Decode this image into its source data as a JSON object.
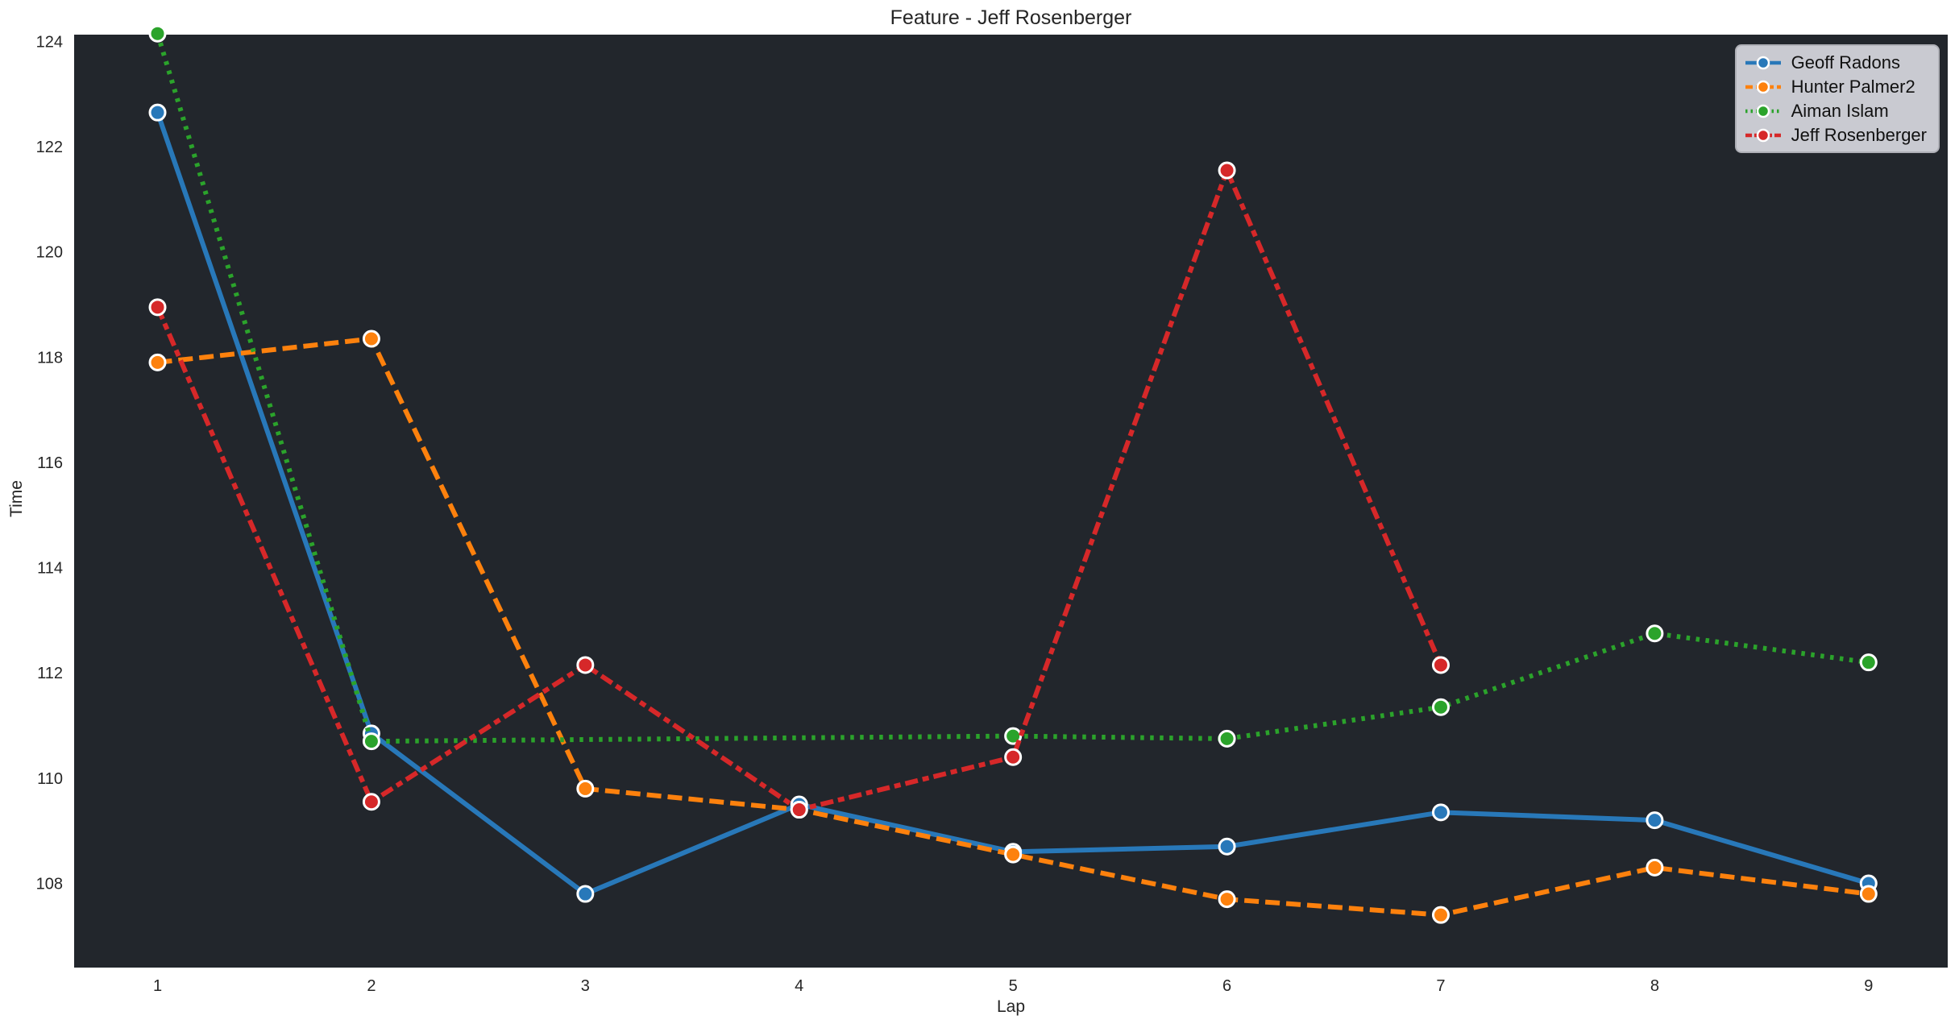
{
  "chart_data": {
    "type": "line",
    "title": "Feature - Jeff Rosenberger",
    "xlabel": "Lap",
    "ylabel": "Time",
    "xlim": [
      0.61,
      9.37
    ],
    "ylim": [
      106.4,
      124.13
    ],
    "xticks": [
      1,
      2,
      3,
      4,
      5,
      6,
      7,
      8,
      9
    ],
    "yticks": [
      108,
      110,
      112,
      114,
      116,
      118,
      120,
      122,
      124
    ],
    "grid": false,
    "legend_position": "upper right",
    "colors": {
      "figure_background": "#ffffff",
      "axes_background": "#22262c",
      "text": "#262626",
      "marker_edge": "#ffffff",
      "legend_background": "#c9cad1"
    },
    "series": [
      {
        "name": "Geoff Radons",
        "color": "#2878b9",
        "dash": "solid",
        "x": [
          1,
          2,
          3,
          4,
          5,
          6,
          7,
          8,
          9
        ],
        "y": [
          122.65,
          110.85,
          107.8,
          109.5,
          108.6,
          108.7,
          109.35,
          109.2,
          108.0
        ]
      },
      {
        "name": "Hunter Palmer2",
        "color": "#fd810d",
        "dash": "dashed",
        "x": [
          1,
          2,
          3,
          4,
          5,
          6,
          7,
          8,
          9
        ],
        "y": [
          117.9,
          118.35,
          109.8,
          109.4,
          108.55,
          107.7,
          107.4,
          108.3,
          107.8
        ]
      },
      {
        "name": "Aiman Islam",
        "color": "#2ba32b",
        "dash": "dotted",
        "x": [
          1,
          2,
          5,
          6,
          7,
          8,
          9
        ],
        "y": [
          124.15,
          110.7,
          110.8,
          110.75,
          111.35,
          112.75,
          112.2
        ]
      },
      {
        "name": "Jeff Rosenberger",
        "color": "#d62829",
        "dash": "dashdot",
        "x": [
          1,
          2,
          3,
          4,
          5,
          6,
          7
        ],
        "y": [
          118.95,
          109.55,
          112.15,
          109.4,
          110.4,
          121.55,
          112.15
        ]
      }
    ]
  }
}
